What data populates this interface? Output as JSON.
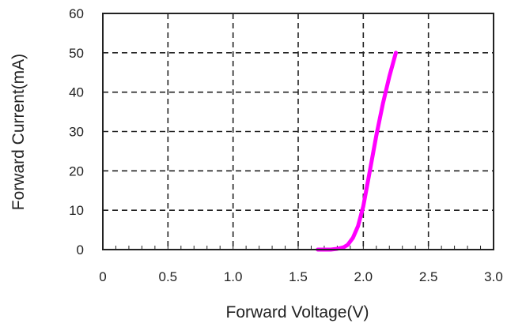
{
  "chart_data": {
    "type": "line",
    "title": "",
    "xlabel": "Forward Voltage(V)",
    "ylabel": "Forward Current(mA)",
    "xlim": [
      0,
      3.0
    ],
    "ylim": [
      0,
      60
    ],
    "x_ticks": [
      "0",
      "0.5",
      "1.0",
      "1.5",
      "2.0",
      "2.5",
      "3.0"
    ],
    "y_ticks": [
      "0",
      "10",
      "20",
      "30",
      "40",
      "50",
      "60"
    ],
    "grid": true,
    "grid_style": "dashed",
    "legend": "none",
    "series": [
      {
        "color": "#ff00ff",
        "x": [
          1.65,
          1.75,
          1.8,
          1.85,
          1.88,
          1.92,
          1.96,
          2.0,
          2.05,
          2.1,
          2.15,
          2.2,
          2.25
        ],
        "y": [
          0,
          0,
          0.2,
          0.6,
          1.2,
          3,
          6,
          11,
          20,
          29,
          37,
          44,
          50
        ]
      }
    ]
  }
}
